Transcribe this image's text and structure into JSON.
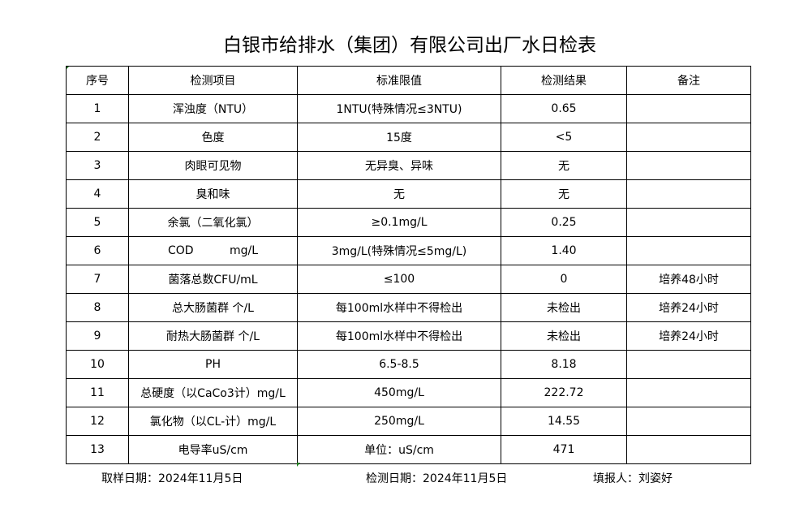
{
  "title": "白银市给排水（集团）有限公司出厂水日检表",
  "headers": [
    "序号",
    "检测项目",
    "标准限值",
    "检测结果",
    "备注"
  ],
  "rows": [
    [
      "1",
      "浑浊度（NTU）",
      "1NTU(特殊情况≤3NTU)",
      "0.65",
      ""
    ],
    [
      "2",
      "色度",
      "15度",
      "<5",
      ""
    ],
    [
      "3",
      "肉眼可见物",
      "无异臭、异味",
      "无",
      ""
    ],
    [
      "4",
      "臭和味",
      "无",
      "无",
      ""
    ],
    [
      "5",
      "余氯（二氧化氯）",
      "≥0.1mg/L",
      "0.25",
      ""
    ],
    [
      "6",
      "COD          mg/L",
      "3mg/L(特殊情况≤5mg/L)",
      "1.40",
      ""
    ],
    [
      "7",
      "菌落总数CFU/mL",
      "≤100",
      "0",
      "培养48小时"
    ],
    [
      "8",
      "总大肠菌群 个/L",
      "每100ml水样中不得检出",
      "未检出",
      "培养24小时"
    ],
    [
      "9",
      "耐热大肠菌群 个/L",
      "每100ml水样中不得检出",
      "未检出",
      "培养24小时"
    ],
    [
      "10",
      "PH",
      "6.5-8.5",
      "8.18",
      ""
    ],
    [
      "11",
      "总硬度（以CaCo3计）mg/L",
      "450mg/L",
      "222.72",
      ""
    ],
    [
      "12",
      "氯化物（以CL-计）mg/L",
      "250mg/L",
      "14.55",
      ""
    ],
    [
      "13",
      "电导率uS/cm",
      "单位：uS/cm",
      "471",
      ""
    ]
  ],
  "footer": {
    "sample_date": "取样日期：2024年11月5日",
    "test_date": "检测日期：2024年11月5日",
    "reporter": "填报人：刘姿好"
  }
}
